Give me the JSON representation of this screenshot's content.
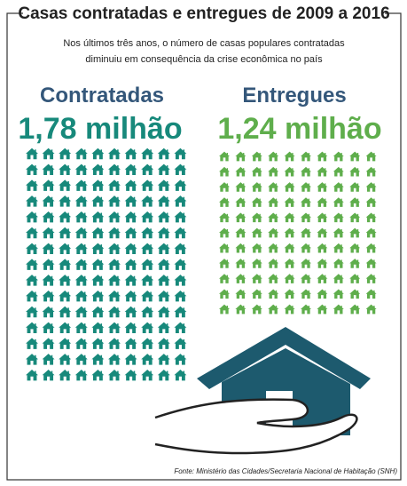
{
  "header": {
    "title": "Casas contratadas e entregues de 2009 a 2016",
    "subtitle": [
      "Nos últimos três anos, o número de casas populares contratadas",
      "diminuiu em consequência da crise econômica no país"
    ]
  },
  "contratadas": {
    "label": "Contratadas",
    "value": "1,78 milhão"
  },
  "entregues": {
    "label": "Entregues",
    "value": "1,24 milhão"
  },
  "source": "Fonte: Ministério das Cidades/Secretaria Nacional de Habitação (SNH)"
}
